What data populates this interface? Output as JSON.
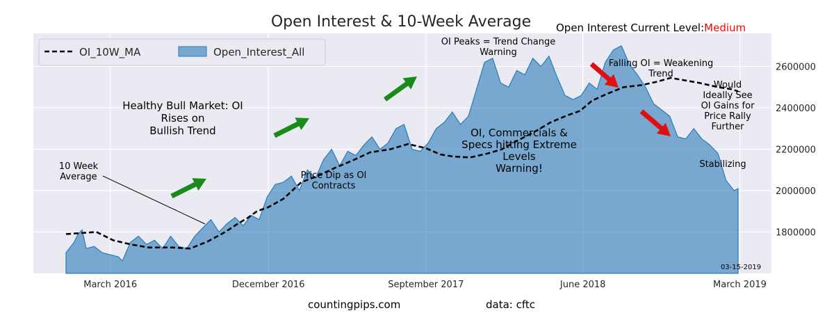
{
  "chart_data": {
    "type": "area",
    "title": "Open Interest & 10-Week Average",
    "status": {
      "label": "Open Interest Current Level:",
      "value": "Medium",
      "value_color": "#ff0000"
    },
    "xlabel": "",
    "ylabel": "",
    "x_range": [
      "2015-12-29",
      "2019-03-12"
    ],
    "ylim": [
      1600000,
      2760000
    ],
    "yticks": [
      1800000,
      2000000,
      2200000,
      2400000,
      2600000
    ],
    "ytick_labels": [
      "1800000",
      "2000000",
      "2200000",
      "2400000",
      "2600000"
    ],
    "xticks": [
      {
        "date": "2016-03-15",
        "label": "March 2016"
      },
      {
        "date": "2016-12-15",
        "label": "December 2016"
      },
      {
        "date": "2017-09-15",
        "label": "September 2017"
      },
      {
        "date": "2018-06-15",
        "label": "June 2018"
      },
      {
        "date": "2019-03-15",
        "label": "March 2019"
      }
    ],
    "grid": true,
    "legend_position": "top-left",
    "series": [
      {
        "name": "OI_10W_MA",
        "style": "dashed-line",
        "color": "#000000",
        "points": [
          [
            "2015-12-29",
            1790000
          ],
          [
            "2016-02-20",
            1800000
          ],
          [
            "2016-03-20",
            1760000
          ],
          [
            "2016-04-20",
            1740000
          ],
          [
            "2016-05-20",
            1725000
          ],
          [
            "2016-07-01",
            1725000
          ],
          [
            "2016-08-01",
            1720000
          ],
          [
            "2016-09-01",
            1755000
          ],
          [
            "2016-10-01",
            1800000
          ],
          [
            "2016-10-20",
            1835000
          ],
          [
            "2016-11-10",
            1870000
          ],
          [
            "2016-11-25",
            1900000
          ],
          [
            "2016-12-15",
            1920000
          ],
          [
            "2017-01-10",
            1960000
          ],
          [
            "2017-02-10",
            2040000
          ],
          [
            "2017-03-10",
            2070000
          ],
          [
            "2017-04-10",
            2110000
          ],
          [
            "2017-05-10",
            2145000
          ],
          [
            "2017-06-10",
            2185000
          ],
          [
            "2017-07-15",
            2200000
          ],
          [
            "2017-08-15",
            2225000
          ],
          [
            "2017-09-15",
            2205000
          ],
          [
            "2017-10-10",
            2175000
          ],
          [
            "2017-11-01",
            2165000
          ],
          [
            "2017-12-01",
            2160000
          ],
          [
            "2018-01-01",
            2180000
          ],
          [
            "2018-01-25",
            2200000
          ],
          [
            "2018-02-20",
            2240000
          ],
          [
            "2018-03-20",
            2280000
          ],
          [
            "2018-04-20",
            2330000
          ],
          [
            "2018-05-20",
            2365000
          ],
          [
            "2018-06-10",
            2385000
          ],
          [
            "2018-07-01",
            2435000
          ],
          [
            "2018-07-25",
            2465000
          ],
          [
            "2018-08-25",
            2500000
          ],
          [
            "2018-09-25",
            2510000
          ],
          [
            "2018-10-20",
            2525000
          ],
          [
            "2018-11-15",
            2545000
          ],
          [
            "2018-12-05",
            2535000
          ],
          [
            "2019-01-05",
            2520000
          ],
          [
            "2019-02-05",
            2500000
          ],
          [
            "2019-03-01",
            2490000
          ],
          [
            "2019-03-12",
            2480000
          ]
        ]
      },
      {
        "name": "Open_Interest_All",
        "style": "area",
        "color": "#2b7bb9",
        "points": [
          [
            "2015-12-29",
            1700000
          ],
          [
            "2016-01-12",
            1750000
          ],
          [
            "2016-01-19",
            1790000
          ],
          [
            "2016-01-26",
            1810000
          ],
          [
            "2016-02-02",
            1720000
          ],
          [
            "2016-02-16",
            1730000
          ],
          [
            "2016-03-01",
            1700000
          ],
          [
            "2016-03-15",
            1690000
          ],
          [
            "2016-03-29",
            1680000
          ],
          [
            "2016-04-05",
            1660000
          ],
          [
            "2016-04-19",
            1750000
          ],
          [
            "2016-05-03",
            1780000
          ],
          [
            "2016-05-17",
            1740000
          ],
          [
            "2016-05-31",
            1760000
          ],
          [
            "2016-06-14",
            1720000
          ],
          [
            "2016-06-28",
            1780000
          ],
          [
            "2016-07-12",
            1730000
          ],
          [
            "2016-07-26",
            1720000
          ],
          [
            "2016-08-09",
            1780000
          ],
          [
            "2016-08-23",
            1820000
          ],
          [
            "2016-09-06",
            1860000
          ],
          [
            "2016-09-20",
            1800000
          ],
          [
            "2016-10-04",
            1840000
          ],
          [
            "2016-10-18",
            1870000
          ],
          [
            "2016-11-01",
            1830000
          ],
          [
            "2016-11-15",
            1880000
          ],
          [
            "2016-11-29",
            1860000
          ],
          [
            "2016-12-13",
            1970000
          ],
          [
            "2016-12-27",
            2030000
          ],
          [
            "2017-01-10",
            2040000
          ],
          [
            "2017-01-24",
            2070000
          ],
          [
            "2017-02-07",
            2000000
          ],
          [
            "2017-02-21",
            2100000
          ],
          [
            "2017-03-07",
            2060000
          ],
          [
            "2017-03-21",
            2150000
          ],
          [
            "2017-04-04",
            2200000
          ],
          [
            "2017-04-18",
            2120000
          ],
          [
            "2017-05-02",
            2190000
          ],
          [
            "2017-05-16",
            2170000
          ],
          [
            "2017-05-30",
            2220000
          ],
          [
            "2017-06-13",
            2260000
          ],
          [
            "2017-06-27",
            2200000
          ],
          [
            "2017-07-11",
            2230000
          ],
          [
            "2017-07-25",
            2300000
          ],
          [
            "2017-08-08",
            2320000
          ],
          [
            "2017-08-22",
            2200000
          ],
          [
            "2017-09-05",
            2190000
          ],
          [
            "2017-09-19",
            2230000
          ],
          [
            "2017-10-03",
            2300000
          ],
          [
            "2017-10-17",
            2330000
          ],
          [
            "2017-10-31",
            2380000
          ],
          [
            "2017-11-14",
            2320000
          ],
          [
            "2017-11-28",
            2360000
          ],
          [
            "2017-12-12",
            2490000
          ],
          [
            "2017-12-26",
            2620000
          ],
          [
            "2018-01-09",
            2640000
          ],
          [
            "2018-01-23",
            2520000
          ],
          [
            "2018-02-06",
            2500000
          ],
          [
            "2018-02-20",
            2580000
          ],
          [
            "2018-03-06",
            2560000
          ],
          [
            "2018-03-20",
            2640000
          ],
          [
            "2018-04-03",
            2600000
          ],
          [
            "2018-04-17",
            2650000
          ],
          [
            "2018-05-01",
            2550000
          ],
          [
            "2018-05-15",
            2460000
          ],
          [
            "2018-05-29",
            2440000
          ],
          [
            "2018-06-12",
            2460000
          ],
          [
            "2018-06-26",
            2520000
          ],
          [
            "2018-07-10",
            2490000
          ],
          [
            "2018-07-24",
            2620000
          ],
          [
            "2018-08-07",
            2680000
          ],
          [
            "2018-08-21",
            2700000
          ],
          [
            "2018-09-04",
            2610000
          ],
          [
            "2018-09-18",
            2560000
          ],
          [
            "2018-10-02",
            2500000
          ],
          [
            "2018-10-16",
            2420000
          ],
          [
            "2018-10-30",
            2390000
          ],
          [
            "2018-11-13",
            2360000
          ],
          [
            "2018-11-27",
            2260000
          ],
          [
            "2018-12-11",
            2250000
          ],
          [
            "2018-12-25",
            2300000
          ],
          [
            "2019-01-08",
            2250000
          ],
          [
            "2019-01-22",
            2220000
          ],
          [
            "2019-02-05",
            2180000
          ],
          [
            "2019-02-19",
            2050000
          ],
          [
            "2019-03-05",
            2000000
          ],
          [
            "2019-03-12",
            2010000
          ]
        ]
      }
    ],
    "annotations": [
      {
        "id": "healthy-bull",
        "lines": [
          "Healthy Bull Market: OI",
          "Rises on",
          "Bullish Trend"
        ]
      },
      {
        "id": "ten-week",
        "lines": [
          "10 Week",
          "Average"
        ]
      },
      {
        "id": "price-dip",
        "lines": [
          "Price Dip as OI",
          "Contracts"
        ]
      },
      {
        "id": "oi-peaks",
        "lines": [
          "OI Peaks = Trend Change",
          "Warning"
        ]
      },
      {
        "id": "oi-extreme",
        "lines": [
          "OI, Commercials &",
          "Specs hitting Extreme",
          "Levels",
          "Warning!"
        ]
      },
      {
        "id": "falling-oi",
        "lines": [
          "Falling OI = Weakening",
          "Trend"
        ]
      },
      {
        "id": "would-see",
        "lines": [
          "Would",
          "Ideally See",
          "OI Gains for",
          "Price Rally",
          "Further"
        ]
      },
      {
        "id": "stabilizing",
        "lines": [
          "Stabilizing"
        ]
      },
      {
        "id": "date-stamp",
        "lines": [
          "03-15-2019"
        ]
      }
    ],
    "arrows": [
      {
        "color": "#1a8a1a",
        "direction": "up"
      },
      {
        "color": "#1a8a1a",
        "direction": "up"
      },
      {
        "color": "#1a8a1a",
        "direction": "up"
      },
      {
        "color": "#e01010",
        "direction": "down"
      },
      {
        "color": "#e01010",
        "direction": "down"
      }
    ]
  },
  "footer": {
    "site": "countingpips.com",
    "source": "data: cftc"
  },
  "colors": {
    "plot_bg": "#eaeaf2",
    "grid": "#ffffff",
    "area_fill": "#2b7bb9"
  }
}
